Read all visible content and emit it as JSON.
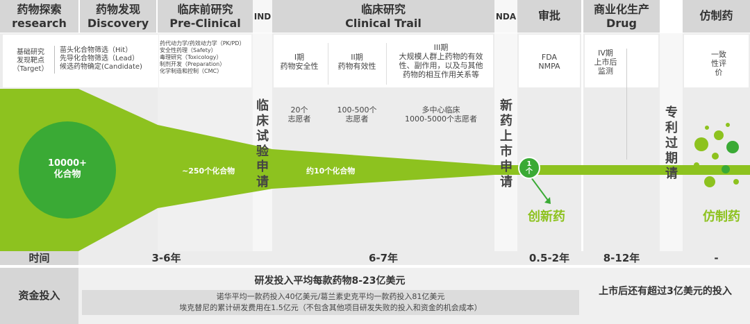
{
  "header": {
    "research": {
      "cn": "药物探索",
      "en": "research"
    },
    "discovery": {
      "cn": "药物发现",
      "en": "Discovery"
    },
    "preclinical": {
      "cn": "临床前研究",
      "en": "Pre-Clinical"
    },
    "ind": "IND",
    "clinical": {
      "cn": "临床研究",
      "en": "Clinical Trail"
    },
    "nda": "NDA",
    "approval": "审批",
    "commercial": {
      "cn": "商业化生产",
      "en": "Drug"
    },
    "generic": "仿制药"
  },
  "details": {
    "research": [
      "基础研究",
      "发现靶点",
      "（Target）"
    ],
    "discovery": [
      "苗头化合物筛选（Hit）",
      "先导化合物筛选（Lead）",
      "候选药物确定(Candidate)"
    ],
    "preclinical": [
      "药代动力学/药效动力学（PK/PD）",
      "安全性药理（Safety）",
      "毒理研究（Toxicology）",
      "制剂开发（Preparation）",
      "化学制造和控制（CMC）"
    ],
    "phase1": [
      "I期",
      "药物安全性"
    ],
    "phase2": [
      "II期",
      "药物有效性"
    ],
    "phase3": [
      "III期",
      "大规模人群上药物的有效",
      "性、副作用，以及与其他",
      "药物的相互作用关系等"
    ],
    "approval": [
      "FDA",
      "NMPA"
    ],
    "phase4": [
      "IV期",
      "上市后",
      "监测"
    ],
    "generic": [
      "一致",
      "性评",
      "价"
    ]
  },
  "volunteers": {
    "phase1": [
      "20个",
      "志愿者"
    ],
    "phase2": [
      "100-500个",
      "志愿者"
    ],
    "phase3": [
      "多中心临床",
      "1000-5000个志愿者"
    ]
  },
  "vertical_labels": {
    "ind": "临床试验申请",
    "nda": "新药上市申请",
    "patent": "专利过期请"
  },
  "funnel": {
    "compounds": [
      "10000+",
      "化合物"
    ],
    "preclinical_count": "~250个化合物",
    "clinical_count": "约10个化合物",
    "final_count": [
      "1",
      "个"
    ],
    "innovative": "创新药",
    "generic": "仿制药"
  },
  "time_row": {
    "label": "时间",
    "discovery": "3-6年",
    "clinical": "6-7年",
    "approval": "0.5-2年",
    "commercial": "8-12年",
    "generic": "-"
  },
  "investment": {
    "label": "资金投入",
    "headline": "研发投入平均每款药物8-23亿美元",
    "note1": "诺华平均一款药投入40亿美元/葛兰素史克平均一款药投入81亿美元",
    "note2": "埃克替尼的累计研发费用在1.5亿元（不包含其他项目研发失败的投入和资金的机会成本）",
    "post_market": "上市后还有超过3亿美元的投入"
  },
  "colors": {
    "green": "#8dc21f",
    "dark_green": "#3aaa35",
    "header_grey": "#d6d6d6",
    "panel_grey": "#ececec"
  }
}
